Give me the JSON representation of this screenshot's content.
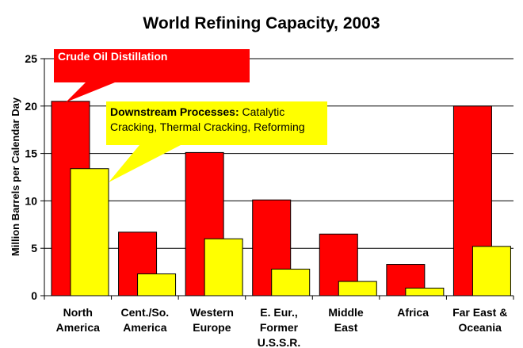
{
  "chart_data": {
    "type": "bar",
    "title": "World Refining Capacity, 2003",
    "ylabel": "Million Barrels per Calendar Day",
    "xlabel": "",
    "ylim": [
      0,
      25
    ],
    "yticks": [
      "0",
      "5",
      "10",
      "15",
      "20",
      "25"
    ],
    "grid": "horizontal",
    "categories": [
      [
        "North",
        "America"
      ],
      [
        "Cent./So.",
        "America"
      ],
      [
        "Western",
        "Europe"
      ],
      [
        "E. Eur.,",
        "Former",
        "U.S.S.R."
      ],
      [
        "Middle",
        "East"
      ],
      [
        "Africa"
      ],
      [
        "Far East &",
        "Oceania"
      ]
    ],
    "series": [
      {
        "name": "Crude Oil Distillation",
        "color": "#ff0000",
        "values": [
          20.5,
          6.7,
          15.1,
          10.1,
          6.5,
          3.3,
          20.0
        ]
      },
      {
        "name": "Downstream Processes",
        "color": "#ffff00",
        "values": [
          13.4,
          2.3,
          6.0,
          2.8,
          1.5,
          0.8,
          5.2
        ]
      }
    ],
    "annotations": {
      "crude": "Crude Oil Distillation",
      "downstream_bold": "Downstream Processes:",
      "downstream_line1": " Catalytic",
      "downstream_line2": "Cracking, Thermal Cracking, Reforming"
    }
  }
}
